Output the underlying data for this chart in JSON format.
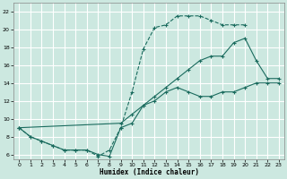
{
  "xlabel": "Humidex (Indice chaleur)",
  "xlim": [
    -0.5,
    23.5
  ],
  "ylim": [
    5.5,
    23
  ],
  "yticks": [
    6,
    8,
    10,
    12,
    14,
    16,
    18,
    20,
    22
  ],
  "xticks": [
    0,
    1,
    2,
    3,
    4,
    5,
    6,
    7,
    8,
    9,
    10,
    11,
    12,
    13,
    14,
    15,
    16,
    17,
    18,
    19,
    20,
    21,
    22,
    23
  ],
  "bg_color": "#cce8e0",
  "line_color": "#1a6b5e",
  "grid_color": "#ffffff",
  "line1_x": [
    0,
    1,
    2,
    3,
    4,
    5,
    6,
    7,
    8,
    9,
    10,
    11,
    12,
    13,
    14,
    15,
    16,
    17,
    18,
    19,
    20
  ],
  "line1_y": [
    9,
    8,
    7.5,
    7,
    6.5,
    6.5,
    6.5,
    5.8,
    6.5,
    9,
    13,
    17.8,
    20.2,
    20.5,
    21.5,
    21.5,
    21.5,
    21,
    20.5,
    20.5,
    20.5
  ],
  "line2_x": [
    0,
    1,
    2,
    3,
    4,
    5,
    6,
    7,
    8,
    9,
    10,
    11,
    12,
    13,
    14,
    15,
    16,
    17,
    18,
    19,
    20,
    21,
    22,
    23
  ],
  "line2_y": [
    9,
    8,
    7.5,
    7,
    6.5,
    6.5,
    6.5,
    6,
    5.8,
    9.0,
    9.5,
    11.5,
    12.0,
    13.0,
    13.5,
    13.0,
    12.5,
    12.5,
    13.0,
    13.0,
    13.5,
    14,
    14,
    14
  ],
  "line3_x": [
    0,
    9,
    10,
    11,
    12,
    13,
    14,
    15,
    16,
    17,
    18,
    19,
    20,
    21,
    22,
    23
  ],
  "line3_y": [
    9,
    9.5,
    10.5,
    11.5,
    12.5,
    13.5,
    14.5,
    15.5,
    16.5,
    17.0,
    17.0,
    18.5,
    19.0,
    16.5,
    14.5,
    14.5
  ]
}
